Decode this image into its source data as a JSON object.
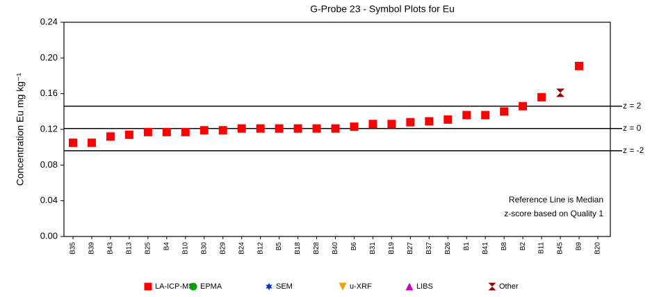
{
  "chart_data": {
    "type": "scatter",
    "title": "G-Probe 23 - Symbol Plots for Eu",
    "y_label": "Concentration Eu mg kg⁻¹",
    "categories": [
      "B35",
      "B39",
      "B43",
      "B13",
      "B25",
      "B4",
      "B10",
      "B30",
      "B29",
      "B24",
      "B12",
      "B5",
      "B18",
      "B28",
      "B40",
      "B6",
      "B31",
      "B19",
      "B27",
      "B37",
      "B26",
      "B1",
      "B41",
      "B8",
      "B2",
      "B11",
      "B45",
      "B9",
      "B20"
    ],
    "series": [
      {
        "name": "LA-ICP-MS",
        "color": "#ff0000",
        "marker": "square",
        "values": [
          0.105,
          0.105,
          0.112,
          0.114,
          0.117,
          0.117,
          0.117,
          0.119,
          0.119,
          0.121,
          0.121,
          0.121,
          0.121,
          0.121,
          0.121,
          0.123,
          0.126,
          0.126,
          0.128,
          0.129,
          0.131,
          0.136,
          0.136,
          0.14,
          0.146,
          0.156,
          null,
          0.191,
          null
        ]
      },
      {
        "name": "EPMA",
        "color": "#00a000",
        "marker": "circle",
        "values": [
          null,
          null,
          null,
          null,
          null,
          null,
          null,
          null,
          null,
          null,
          null,
          null,
          null,
          null,
          null,
          null,
          null,
          null,
          null,
          null,
          null,
          null,
          null,
          null,
          null,
          null,
          null,
          null,
          null
        ]
      },
      {
        "name": "SEM",
        "color": "#0033cc",
        "marker": "star",
        "values": [
          null,
          null,
          null,
          null,
          null,
          null,
          null,
          null,
          null,
          null,
          null,
          null,
          null,
          null,
          null,
          null,
          null,
          null,
          null,
          null,
          null,
          null,
          null,
          null,
          null,
          null,
          null,
          null,
          null
        ]
      },
      {
        "name": "u-XRF",
        "color": "#ff9900",
        "marker": "triangle-down",
        "values": [
          null,
          null,
          null,
          null,
          null,
          null,
          null,
          null,
          null,
          null,
          null,
          null,
          null,
          null,
          null,
          null,
          null,
          null,
          null,
          null,
          null,
          null,
          null,
          null,
          null,
          null,
          null,
          null,
          null
        ]
      },
      {
        "name": "LIBS",
        "color": "#cc00cc",
        "marker": "triangle-up",
        "values": [
          null,
          null,
          null,
          null,
          null,
          null,
          null,
          null,
          null,
          null,
          null,
          null,
          null,
          null,
          null,
          null,
          null,
          null,
          null,
          null,
          null,
          null,
          null,
          null,
          null,
          null,
          null,
          null,
          null
        ]
      },
      {
        "name": "Other",
        "color": "#990000",
        "marker": "hourglass",
        "values": [
          null,
          null,
          null,
          null,
          null,
          null,
          null,
          null,
          null,
          null,
          null,
          null,
          null,
          null,
          null,
          null,
          null,
          null,
          null,
          null,
          null,
          null,
          null,
          null,
          null,
          null,
          0.161,
          null,
          null
        ]
      }
    ],
    "reference_lines": [
      {
        "label": "z = 2",
        "value": 0.146
      },
      {
        "label": "z = 0",
        "value": 0.121
      },
      {
        "label": "z = -2",
        "value": 0.096
      }
    ],
    "annotations": [
      "Reference Line is Median",
      "z-score based on Quality 1"
    ],
    "ylim": [
      0,
      0.24
    ],
    "yticks": [
      {
        "value": 0,
        "label": "0.00"
      },
      {
        "value": 0.04,
        "label": "0.04"
      },
      {
        "value": 0.08,
        "label": "0.08"
      },
      {
        "value": 0.12,
        "label": "0.12"
      },
      {
        "value": 0.16,
        "label": "0.16"
      },
      {
        "value": 0.2,
        "label": "0.20"
      },
      {
        "value": 0.24,
        "label": "0.24"
      }
    ]
  }
}
